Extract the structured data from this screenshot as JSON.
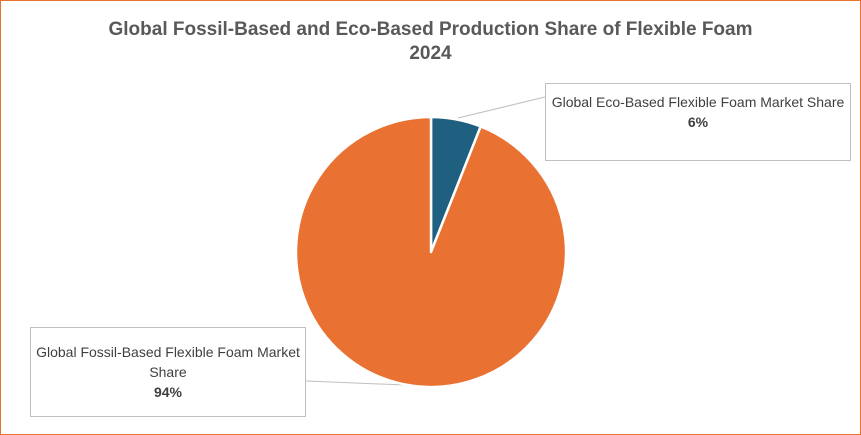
{
  "chart_data": {
    "type": "pie",
    "title": "Global Fossil-Based and Eco-Based Production Share of Flexible Foam",
    "subtitle": "2024",
    "slices": [
      {
        "name": "Global Eco-Based Flexible Foam Market Share",
        "value": 6,
        "label": "6%",
        "color": "#1f6080"
      },
      {
        "name": "Global Fossil-Based Flexible Foam Market Share",
        "value": 94,
        "label": "94%",
        "color": "#e97132"
      }
    ]
  },
  "frame_color": "#e8722f"
}
